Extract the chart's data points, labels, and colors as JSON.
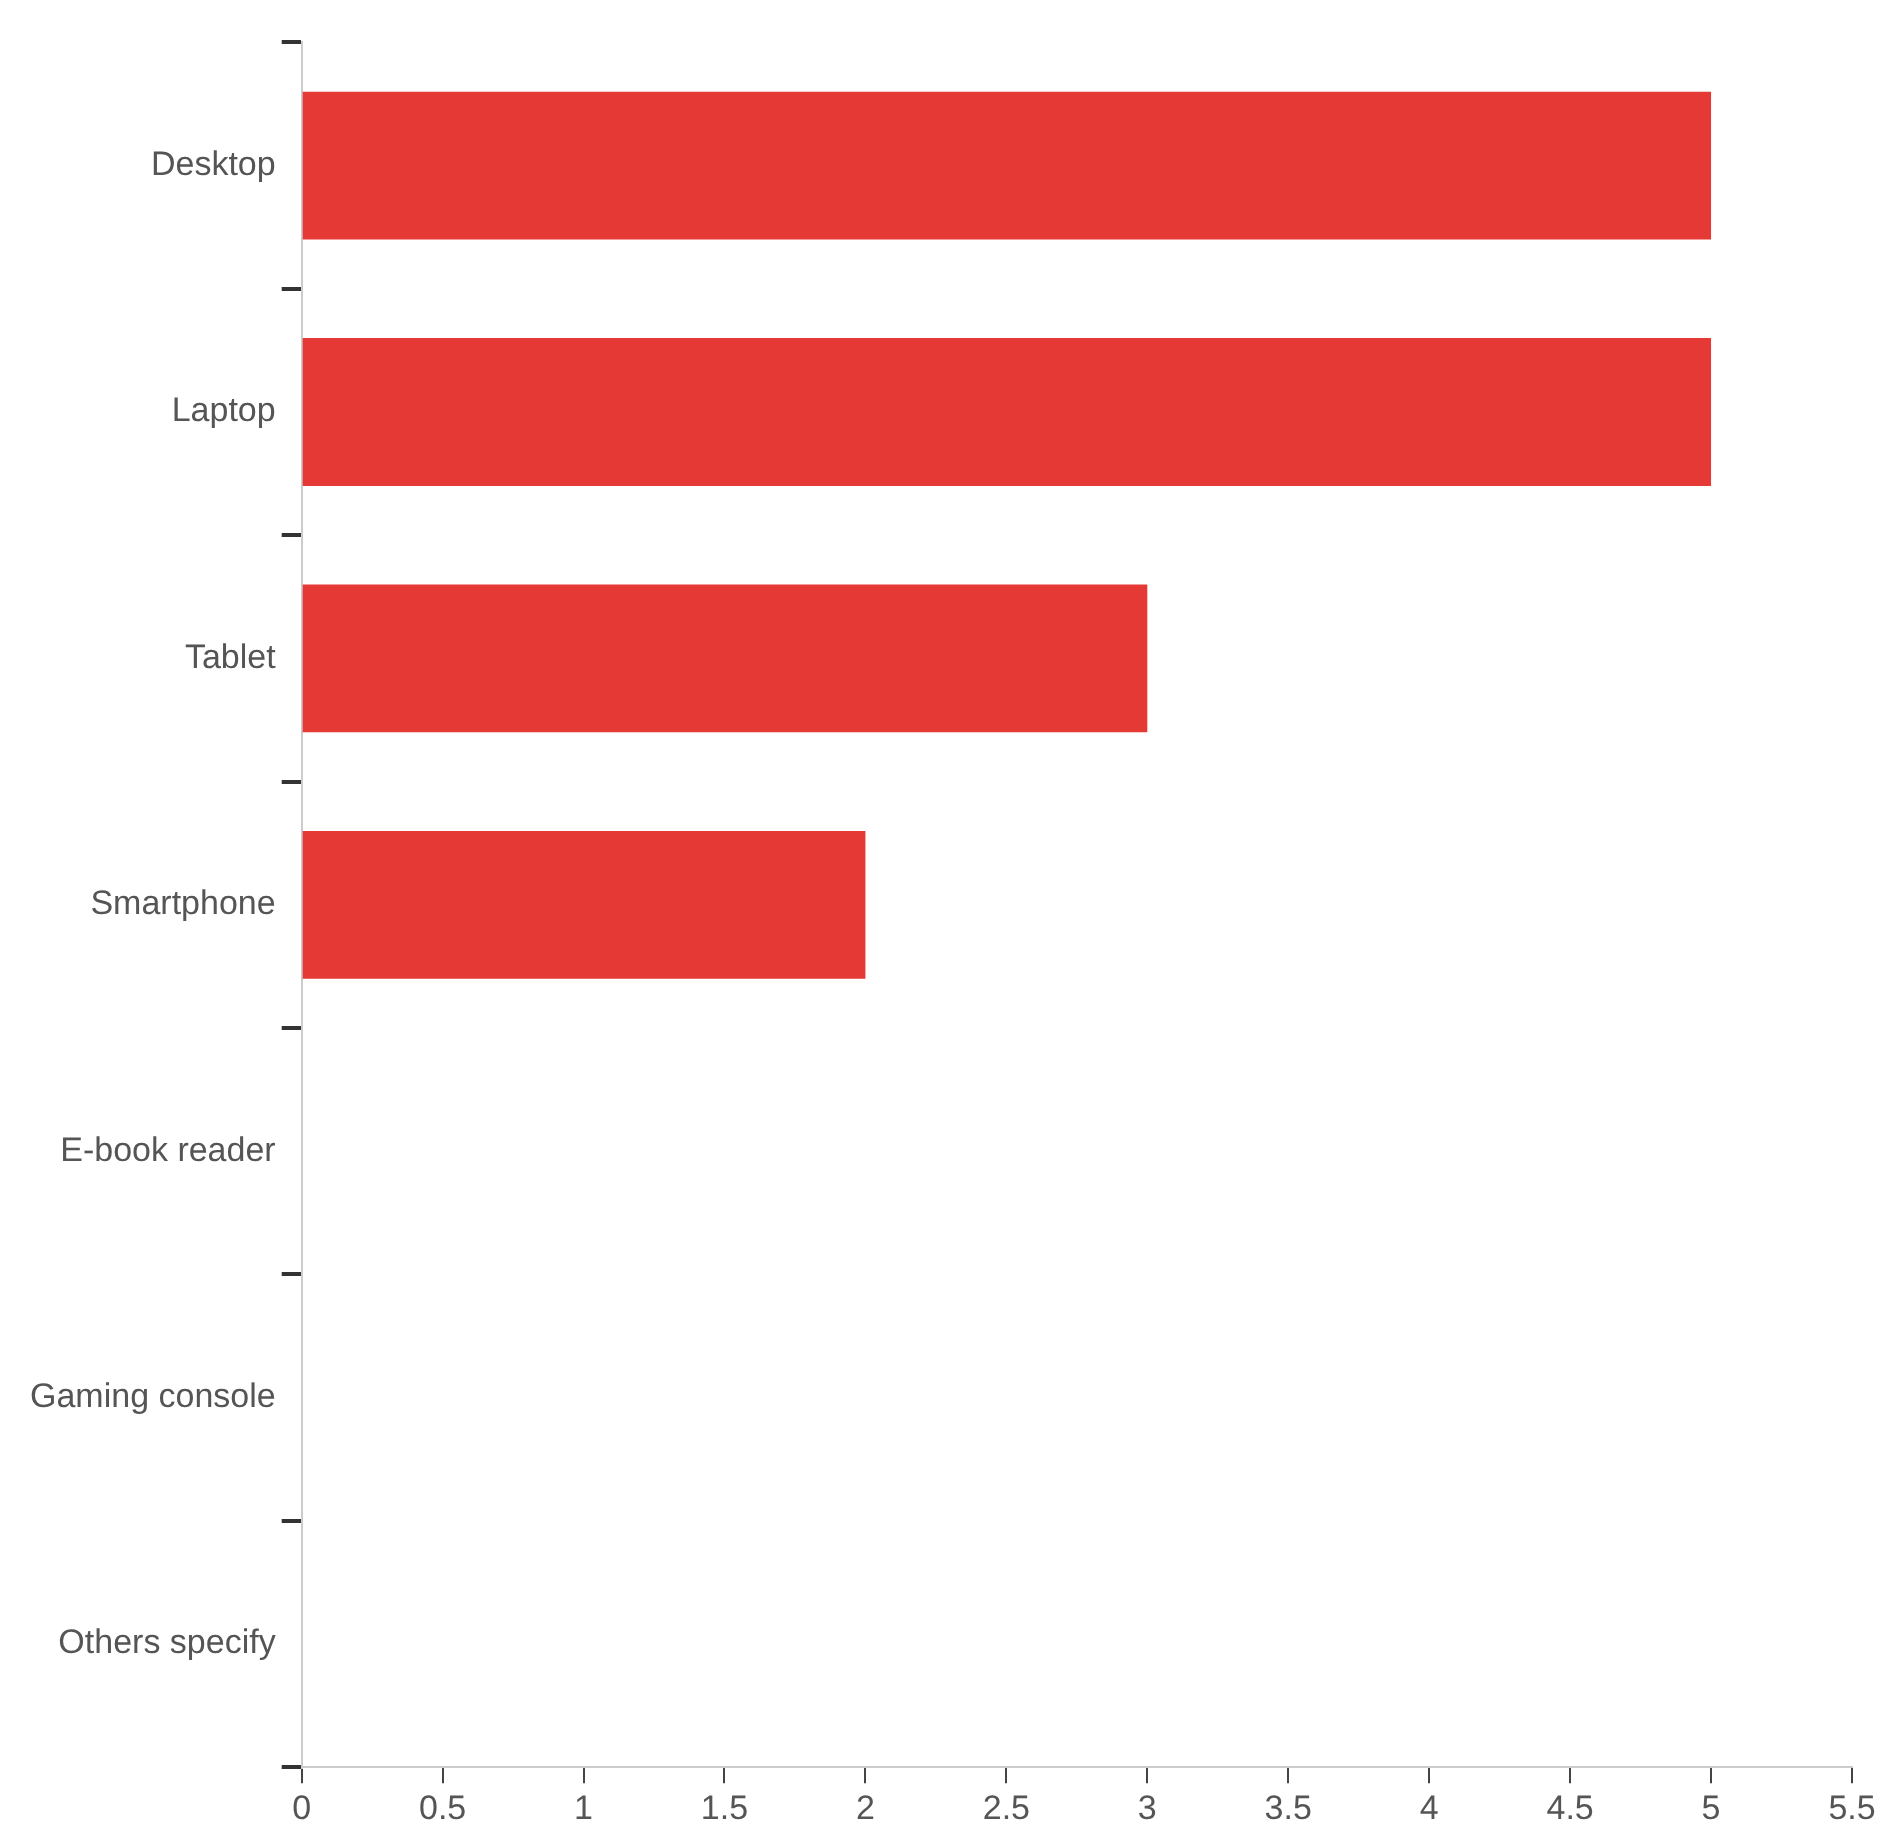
{
  "chart_data": {
    "type": "bar",
    "orientation": "horizontal",
    "categories": [
      "Desktop",
      "Laptop",
      "Tablet",
      "Smartphone",
      "E-book reader",
      "Gaming console",
      "Others specify"
    ],
    "values": [
      5,
      5,
      3,
      2,
      0,
      0,
      0
    ],
    "color": "#e53935",
    "xlim": [
      0,
      5.5
    ],
    "xticks": [
      0,
      0.5,
      1,
      1.5,
      2,
      2.5,
      3,
      3.5,
      4,
      4.5,
      5,
      5.5
    ],
    "grid": false,
    "legend": false
  }
}
